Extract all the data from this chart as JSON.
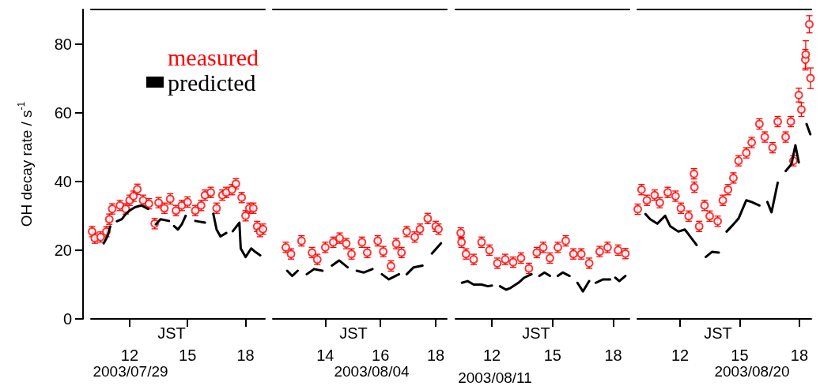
{
  "chart_data": [
    {
      "type": "scatter",
      "ylabel": "OH decay rate / s$^{-1}$",
      "xlabel": "JST",
      "annotations": [
        "2003/07/29"
      ],
      "xlim": [
        10,
        19
      ],
      "xticks": [
        12,
        15,
        18
      ],
      "ylim": [
        0,
        90
      ],
      "yticks": [
        0,
        20,
        40,
        60,
        80
      ],
      "legend": "top right",
      "series": [
        {
          "name": "measured",
          "marker": "circle",
          "color": "#ff0000",
          "x": [
            10.06,
            10.2,
            10.5,
            10.8,
            10.95,
            11.1,
            11.5,
            11.8,
            12.0,
            12.2,
            12.4,
            12.7,
            13.0,
            13.3,
            13.5,
            13.8,
            14.1,
            14.4,
            14.7,
            15.0,
            15.4,
            15.7,
            15.9,
            16.2,
            16.5,
            16.8,
            17.0,
            17.3,
            17.5,
            17.8,
            18.0,
            18.2,
            18.4,
            18.6,
            18.75,
            18.9
          ],
          "values": [
            25.4,
            23.5,
            23.8,
            25.4,
            29,
            32,
            33,
            32,
            34.5,
            35.7,
            37.7,
            34.5,
            33.5,
            27.7,
            33.8,
            32.2,
            34.9,
            31.5,
            33,
            34,
            31.5,
            33,
            36,
            36.8,
            32.2,
            36,
            36.8,
            37.6,
            39.3,
            35.3,
            30,
            32.2,
            32.2,
            26.9,
            25.4,
            26.1
          ],
          "errors": [
            1.5,
            1.5,
            1.5,
            1.5,
            1.5,
            1.5,
            1.5,
            1.5,
            1.5,
            1.5,
            1.5,
            1.5,
            1.5,
            1.5,
            1.5,
            1.5,
            1.5,
            1.5,
            1.5,
            1.5,
            1.5,
            1.5,
            1.5,
            1.5,
            1.5,
            1.5,
            1.5,
            1.5,
            1.5,
            1.5,
            1.5,
            1.5,
            1.5,
            1.5,
            1.5,
            1.5
          ]
        },
        {
          "name": "predicted",
          "type": "line",
          "marker": "none",
          "line_style": "solid",
          "color": "#000000",
          "x": [
            10.66,
            10.85,
            11.0,
            11.1,
            11.34,
            11.6,
            11.8,
            12.0,
            12.28,
            12.6,
            12.96,
            13.1,
            13.36,
            13.6,
            14.04,
            14.15,
            14.3,
            14.5,
            14.7,
            14.9,
            15.1,
            15.4,
            15.9,
            16.1,
            16.33,
            16.5,
            16.7,
            17.0,
            17.2,
            17.34,
            17.68,
            17.75,
            18.0,
            18.29,
            18.5,
            18.76
          ],
          "values": [
            22,
            24,
            26.9,
            null,
            28.4,
            29,
            30.5,
            31.5,
            32.5,
            33,
            32,
            null,
            27.5,
            29,
            28.5,
            null,
            27,
            26,
            27.5,
            30,
            null,
            28.5,
            28,
            null,
            30.6,
            26,
            24,
            25,
            null,
            25.5,
            28,
            20.5,
            18,
            20.5,
            19.5,
            18.5
          ]
        }
      ]
    },
    {
      "type": "scatter",
      "xlabel": "JST",
      "annotations": [
        "2003/08/04"
      ],
      "xlim": [
        12.1,
        18.4
      ],
      "xticks": [
        14,
        16,
        18
      ],
      "ylim": [
        0,
        90
      ],
      "tick_labels": "x",
      "series": [
        {
          "marker": "circle",
          "color": "#ff0000",
          "x": [
            12.57,
            12.76,
            13.14,
            13.52,
            13.71,
            14.0,
            14.29,
            14.52,
            14.76,
            14.95,
            15.33,
            15.52,
            15.9,
            16.1,
            16.38,
            16.57,
            16.76,
            16.95,
            17.24,
            17.43,
            17.71,
            18.0,
            18.1
          ],
          "values": [
            20.8,
            18.9,
            22.7,
            19.3,
            17.3,
            20.8,
            22.3,
            23.5,
            21.9,
            18.9,
            22.3,
            19.3,
            22.7,
            19.6,
            15.4,
            21.9,
            19.3,
            25.4,
            23.8,
            26.1,
            29.2,
            26.9,
            26.1
          ],
          "errors": [
            1.5,
            1.5,
            1.5,
            1.5,
            1.5,
            1.5,
            1.5,
            1.5,
            1.5,
            1.5,
            1.5,
            1.5,
            1.5,
            1.5,
            1.5,
            1.5,
            1.5,
            1.5,
            1.5,
            1.5,
            1.5,
            1.5,
            1.5
          ]
        },
        {
          "type": "line",
          "marker": "none",
          "line_style": "solid",
          "color": "#000000",
          "x": [
            12.62,
            12.8,
            13.0,
            13.15,
            13.33,
            13.6,
            13.9,
            14.05,
            14.24,
            14.5,
            14.81,
            14.95,
            15.14,
            15.4,
            15.71,
            15.9,
            16.05,
            16.3,
            16.67,
            16.8,
            16.95,
            17.2,
            17.52,
            17.7,
            17.86,
            18.19
          ],
          "values": [
            14,
            12.5,
            14,
            null,
            13,
            14.5,
            14,
            null,
            15.5,
            17,
            15,
            null,
            14,
            13.5,
            14.5,
            null,
            13,
            11.5,
            13,
            null,
            13,
            15,
            15.5,
            null,
            19,
            22
          ]
        }
      ]
    },
    {
      "type": "scatter",
      "xlabel": "JST",
      "annotations": [
        "2003/08/11"
      ],
      "xlim": [
        10.2,
        18.8
      ],
      "xticks": [
        12,
        15,
        18
      ],
      "ylim": [
        0,
        90
      ],
      "tick_labels": "x",
      "series": [
        {
          "marker": "circle",
          "color": "#ff0000",
          "x": [
            10.46,
            10.5,
            10.72,
            11.1,
            11.49,
            11.88,
            12.27,
            12.66,
            13.05,
            13.44,
            13.83,
            14.22,
            14.54,
            14.87,
            15.26,
            15.65,
            16.03,
            16.42,
            16.81,
            17.33,
            17.72,
            18.24,
            18.6
          ],
          "values": [
            25,
            22.3,
            18.9,
            17.3,
            22.3,
            20,
            16.2,
            17.3,
            16.5,
            17.7,
            14.7,
            19.3,
            20.8,
            17.7,
            20.8,
            22.7,
            18.9,
            18.9,
            16.2,
            19.6,
            20.8,
            20,
            19
          ],
          "errors": [
            1.5,
            1.5,
            1.5,
            1.5,
            1.5,
            1.5,
            1.5,
            1.5,
            1.5,
            1.5,
            1.5,
            1.5,
            1.5,
            1.5,
            1.5,
            1.5,
            1.5,
            1.5,
            1.5,
            1.5,
            1.5,
            1.5,
            1.5
          ]
        },
        {
          "type": "line",
          "marker": "none",
          "line_style": "solid",
          "color": "#000000",
          "x": [
            10.52,
            10.8,
            11.1,
            11.49,
            11.8,
            12.0,
            12.2,
            12.4,
            12.7,
            12.92,
            13.31,
            13.6,
            13.96,
            14.15,
            14.35,
            14.6,
            14.87,
            15.05,
            15.26,
            15.5,
            15.84,
            16.0,
            16.23,
            16.5,
            16.81,
            17.0,
            17.14,
            17.5,
            17.85,
            17.95,
            18.1,
            18.3,
            18.6
          ],
          "values": [
            10.5,
            11,
            10,
            10,
            9.5,
            9.7,
            null,
            9.5,
            8.5,
            9,
            10.5,
            12,
            13,
            null,
            12.5,
            13.5,
            12.5,
            null,
            12.5,
            13.5,
            12.5,
            null,
            10.5,
            8,
            11,
            null,
            10.5,
            11.5,
            11.5,
            null,
            12,
            11,
            12.5
          ]
        }
      ]
    },
    {
      "type": "scatter",
      "xlabel": "JST",
      "annotations": [
        "2003/08/20"
      ],
      "xlim": [
        9.85,
        18.6
      ],
      "xticks": [
        12,
        15,
        18
      ],
      "ylim": [
        0,
        90
      ],
      "tick_labels": "x",
      "series": [
        {
          "marker": "circle",
          "color": "#ff0000",
          "x": [
            9.87,
            10.06,
            10.33,
            10.72,
            10.98,
            11.38,
            11.77,
            12.04,
            12.43,
            12.7,
            12.72,
            12.96,
            13.23,
            13.49,
            13.89,
            14.15,
            14.41,
            14.68,
            14.94,
            15.33,
            15.6,
            15.99,
            16.26,
            16.65,
            16.91,
            17.31,
            17.57,
            17.7,
            17.97,
            18.1,
            18.3,
            18.32,
            18.5,
            18.56
          ],
          "values": [
            31.9,
            37.6,
            34.5,
            36,
            33.8,
            36.8,
            35.7,
            32.2,
            29.9,
            42.2,
            38.3,
            26.9,
            33,
            29.9,
            28.4,
            34.5,
            37.6,
            41,
            46,
            48.3,
            51.3,
            56.7,
            52.9,
            49.8,
            57.4,
            52.9,
            57.4,
            46,
            65.1,
            60.9,
            75.4,
            76.9,
            85.7,
            70
          ],
          "errors": [
            1.5,
            1.5,
            1.5,
            1.5,
            1.5,
            1.5,
            1.5,
            1.5,
            1.5,
            1.5,
            1.5,
            1.5,
            1.5,
            1.5,
            1.5,
            1.5,
            1.5,
            1.5,
            1.5,
            1.5,
            1.5,
            1.5,
            1.5,
            1.5,
            1.5,
            1.5,
            1.5,
            1.5,
            2,
            2,
            3,
            4,
            2.5,
            3
          ]
        },
        {
          "type": "line",
          "marker": "none",
          "line_style": "solid",
          "color": "#000000",
          "x": [
            10.26,
            10.5,
            10.85,
            11.25,
            11.5,
            11.91,
            12.24,
            12.5,
            12.83,
            13.05,
            13.29,
            13.6,
            13.95,
            14.15,
            14.34,
            14.6,
            14.94,
            15.33,
            15.6,
            15.99,
            16.2,
            16.39,
            16.6,
            16.91,
            17.1,
            17.31,
            17.6,
            17.8,
            17.97,
            18.15,
            18.36,
            18.55
          ],
          "values": [
            30.5,
            29,
            27.7,
            30,
            27,
            25.4,
            26,
            24,
            21.5,
            null,
            18,
            19.5,
            19.3,
            null,
            25.4,
            27,
            29.2,
            34.5,
            34,
            33,
            null,
            34,
            31,
            39.6,
            null,
            43,
            45,
            50.5,
            45.5,
            null,
            56.7,
            53.7
          ]
        }
      ]
    }
  ]
}
